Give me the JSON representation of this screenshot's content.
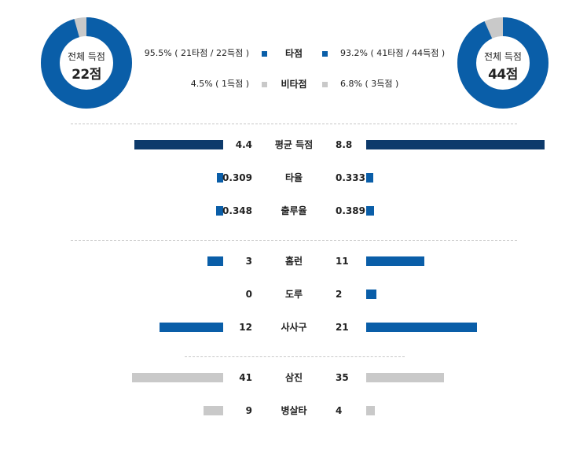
{
  "colors": {
    "primary": "#0a5ea8",
    "dark": "#0d3a6b",
    "light": "#c9c9c9"
  },
  "left_total": {
    "label": "전체 득점",
    "value": "22점",
    "hit_fraction": 0.955
  },
  "right_total": {
    "label": "전체 득점",
    "value": "44점",
    "hit_fraction": 0.932
  },
  "legend": [
    {
      "left": "95.5% ( 21타점 / 22득점 )",
      "center": "타점",
      "right": "93.2% ( 41타점 / 44득점 )"
    },
    {
      "left": "4.5% ( 1득점 )",
      "center": "비타점",
      "right": "6.8% ( 3득점 )"
    }
  ],
  "chart_data": {
    "type": "bar",
    "categories": [
      "평균 득점",
      "타율",
      "출루율",
      "홈런",
      "도루",
      "사사구",
      "삼진",
      "병살타"
    ],
    "series": [
      {
        "values": [
          4.4,
          0.309,
          0.348,
          3,
          0,
          12,
          41,
          9
        ]
      },
      {
        "values": [
          8.8,
          0.333,
          0.389,
          11,
          2,
          21,
          35,
          4
        ]
      }
    ],
    "labels_left": [
      "4.4",
      "0.309",
      "0.348",
      "3",
      "0",
      "12",
      "41",
      "9"
    ],
    "labels_right": [
      "8.8",
      "0.333",
      "0.389",
      "11",
      "2",
      "21",
      "35",
      "4"
    ],
    "bar_styles": [
      "dark",
      "primary",
      "primary",
      "primary",
      "primary",
      "primary",
      "light",
      "light"
    ],
    "groups": [
      [
        0,
        1,
        2
      ],
      [
        3,
        4,
        5
      ],
      [
        6,
        7
      ]
    ]
  }
}
